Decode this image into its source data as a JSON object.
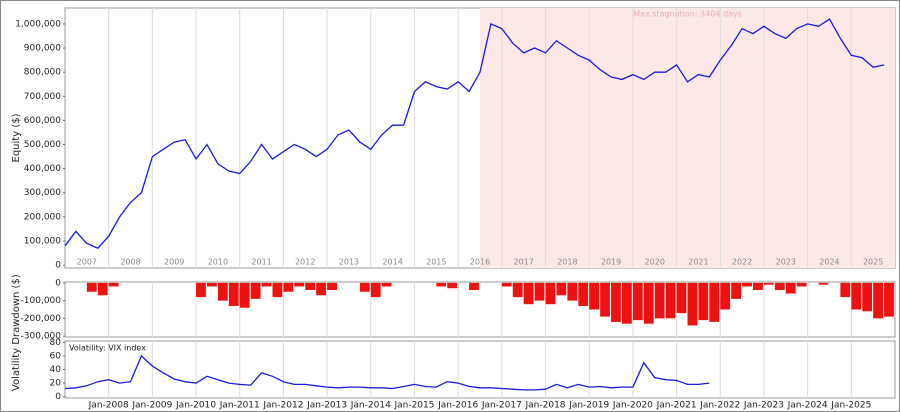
{
  "chart_data": [
    {
      "type": "line",
      "ylabel": "Equity ($)",
      "color": "#1a1adc",
      "xlim": [
        "2007-01",
        "2026-01"
      ],
      "ylim": [
        -12000,
        1066000
      ],
      "yticks": [
        0,
        {
          "value": 100000,
          "label": "100,000"
        },
        {
          "value": 200000,
          "label": "200,000"
        },
        {
          "value": 300000,
          "label": "300,000"
        },
        {
          "value": 400000,
          "label": "400,000"
        },
        {
          "value": 500000,
          "label": "500,000"
        },
        {
          "value": 600000,
          "label": "600,000"
        },
        {
          "value": 700000,
          "label": "700,000"
        },
        {
          "value": 800000,
          "label": "800,000"
        },
        {
          "value": 900000,
          "label": "900,000"
        },
        {
          "value": 1000000,
          "label": "1,000,000"
        }
      ],
      "year_labels": [
        {
          "value": "2007-07",
          "label": "2007"
        },
        {
          "value": "2008-07",
          "label": "2008"
        },
        {
          "value": "2009-07",
          "label": "2009"
        },
        {
          "value": "2010-07",
          "label": "2010"
        },
        {
          "value": "2011-07",
          "label": "2011"
        },
        {
          "value": "2012-07",
          "label": "2012"
        },
        {
          "value": "2013-07",
          "label": "2013"
        },
        {
          "value": "2014-07",
          "label": "2014"
        },
        {
          "value": "2015-07",
          "label": "2015"
        },
        {
          "value": "2016-07",
          "label": "2016"
        },
        {
          "value": "2017-07",
          "label": "2017"
        },
        {
          "value": "2018-07",
          "label": "2018"
        },
        {
          "value": "2019-07",
          "label": "2019"
        },
        {
          "value": "2020-07",
          "label": "2020"
        },
        {
          "value": "2021-07",
          "label": "2021"
        },
        {
          "value": "2022-07",
          "label": "2022"
        },
        {
          "value": "2023-07",
          "label": "2023"
        },
        {
          "value": "2024-07",
          "label": "2024"
        },
        {
          "value": "2025-07",
          "label": "2025"
        }
      ],
      "stagnation": {
        "label": "Max stagnation: 3404 days",
        "start": "2016-07",
        "end": "2026-01",
        "color": "#fde8e8"
      },
      "x": [
        "2007-01",
        "2007-04",
        "2007-07",
        "2007-10",
        "2008-01",
        "2008-04",
        "2008-07",
        "2008-10",
        "2009-01",
        "2009-04",
        "2009-07",
        "2009-10",
        "2010-01",
        "2010-04",
        "2010-07",
        "2010-10",
        "2011-01",
        "2011-04",
        "2011-07",
        "2011-10",
        "2012-01",
        "2012-04",
        "2012-07",
        "2012-10",
        "2013-01",
        "2013-04",
        "2013-07",
        "2013-10",
        "2014-01",
        "2014-04",
        "2014-07",
        "2014-10",
        "2015-01",
        "2015-04",
        "2015-07",
        "2015-10",
        "2016-01",
        "2016-04",
        "2016-07",
        "2016-10",
        "2017-01",
        "2017-04",
        "2017-07",
        "2017-10",
        "2018-01",
        "2018-04",
        "2018-07",
        "2018-10",
        "2019-01",
        "2019-04",
        "2019-07",
        "2019-10",
        "2020-01",
        "2020-04",
        "2020-07",
        "2020-10",
        "2021-01",
        "2021-04",
        "2021-07",
        "2021-10",
        "2022-01",
        "2022-04",
        "2022-07",
        "2022-10",
        "2023-01",
        "2023-04",
        "2023-07",
        "2023-10",
        "2024-01",
        "2024-04",
        "2024-07",
        "2024-10",
        "2025-01",
        "2025-04",
        "2025-07",
        "2025-10"
      ],
      "values": [
        80000,
        140000,
        90000,
        70000,
        120000,
        200000,
        260000,
        300000,
        450000,
        480000,
        510000,
        520000,
        440000,
        500000,
        420000,
        390000,
        380000,
        430000,
        500000,
        440000,
        470000,
        500000,
        480000,
        450000,
        480000,
        540000,
        560000,
        510000,
        480000,
        540000,
        580000,
        580000,
        720000,
        760000,
        740000,
        730000,
        760000,
        720000,
        800000,
        1000000,
        980000,
        920000,
        880000,
        900000,
        880000,
        930000,
        900000,
        870000,
        850000,
        810000,
        780000,
        770000,
        790000,
        770000,
        800000,
        800000,
        830000,
        760000,
        790000,
        780000,
        850000,
        910000,
        980000,
        960000,
        990000,
        960000,
        940000,
        980000,
        1000000,
        990000,
        1020000,
        940000,
        870000,
        860000,
        820000,
        830000
      ]
    },
    {
      "type": "bar",
      "ylabel": "Drawdown ($)",
      "color": "#ee1111",
      "xlim": [
        "2007-01",
        "2026-01"
      ],
      "ylim": [
        -305000,
        5000
      ],
      "yticks": [
        0,
        {
          "value": -100000,
          "label": "-100,000"
        },
        {
          "value": -200000,
          "label": "-200,000"
        },
        {
          "value": -300000,
          "label": "-300,000"
        }
      ],
      "x": [
        "2007-01",
        "2007-04",
        "2007-07",
        "2007-10",
        "2008-01",
        "2008-04",
        "2008-07",
        "2008-10",
        "2009-01",
        "2009-04",
        "2009-07",
        "2009-10",
        "2010-01",
        "2010-04",
        "2010-07",
        "2010-10",
        "2011-01",
        "2011-04",
        "2011-07",
        "2011-10",
        "2012-01",
        "2012-04",
        "2012-07",
        "2012-10",
        "2013-01",
        "2013-04",
        "2013-07",
        "2013-10",
        "2014-01",
        "2014-04",
        "2014-07",
        "2014-10",
        "2015-01",
        "2015-04",
        "2015-07",
        "2015-10",
        "2016-01",
        "2016-04",
        "2016-07",
        "2016-10",
        "2017-01",
        "2017-04",
        "2017-07",
        "2017-10",
        "2018-01",
        "2018-04",
        "2018-07",
        "2018-10",
        "2019-01",
        "2019-04",
        "2019-07",
        "2019-10",
        "2020-01",
        "2020-04",
        "2020-07",
        "2020-10",
        "2021-01",
        "2021-04",
        "2021-07",
        "2021-10",
        "2022-01",
        "2022-04",
        "2022-07",
        "2022-10",
        "2023-01",
        "2023-04",
        "2023-07",
        "2023-10",
        "2024-01",
        "2024-04",
        "2024-07",
        "2024-10",
        "2025-01",
        "2025-04",
        "2025-07",
        "2025-10"
      ],
      "values": [
        0,
        0,
        -50000,
        -70000,
        -20000,
        0,
        0,
        0,
        0,
        0,
        0,
        0,
        -80000,
        -20000,
        -100000,
        -130000,
        -140000,
        -90000,
        -20000,
        -80000,
        -50000,
        -20000,
        -40000,
        -70000,
        -40000,
        0,
        0,
        -50000,
        -80000,
        -20000,
        0,
        0,
        0,
        0,
        -20000,
        -30000,
        0,
        -40000,
        0,
        0,
        -20000,
        -80000,
        -120000,
        -100000,
        -120000,
        -70000,
        -100000,
        -130000,
        -150000,
        -190000,
        -220000,
        -230000,
        -210000,
        -230000,
        -200000,
        -200000,
        -170000,
        -240000,
        -210000,
        -220000,
        -150000,
        -90000,
        -20000,
        -40000,
        -10000,
        -40000,
        -60000,
        -20000,
        0,
        -10000,
        0,
        -80000,
        -150000,
        -160000,
        -200000,
        -190000
      ]
    },
    {
      "type": "line",
      "title": "Volatility: VIX index",
      "ylabel": "Volatility",
      "color": "#1a1adc",
      "xlim": [
        "2007-01",
        "2026-01"
      ],
      "ylim": [
        -2,
        82
      ],
      "yticks": [
        0,
        20,
        40,
        60,
        80
      ],
      "xticks": [
        {
          "value": "2008-01",
          "label": "Jan-2008"
        },
        {
          "value": "2009-01",
          "label": "Jan-2009"
        },
        {
          "value": "2010-01",
          "label": "Jan-2010"
        },
        {
          "value": "2011-01",
          "label": "Jan-2011"
        },
        {
          "value": "2012-01",
          "label": "Jan-2012"
        },
        {
          "value": "2013-01",
          "label": "Jan-2013"
        },
        {
          "value": "2014-01",
          "label": "Jan-2014"
        },
        {
          "value": "2015-01",
          "label": "Jan-2015"
        },
        {
          "value": "2016-01",
          "label": "Jan-2016"
        },
        {
          "value": "2017-01",
          "label": "Jan-2017"
        },
        {
          "value": "2018-01",
          "label": "Jan-2018"
        },
        {
          "value": "2019-01",
          "label": "Jan-2019"
        },
        {
          "value": "2020-01",
          "label": "Jan-2020"
        },
        {
          "value": "2021-01",
          "label": "Jan-2021"
        },
        {
          "value": "2022-01",
          "label": "Jan-2022"
        },
        {
          "value": "2023-01",
          "label": "Jan-2023"
        },
        {
          "value": "2024-01",
          "label": "Jan-2024"
        },
        {
          "value": "2025-01",
          "label": "Jan-2025"
        }
      ],
      "x": [
        "2007-01",
        "2007-04",
        "2007-07",
        "2007-10",
        "2008-01",
        "2008-04",
        "2008-07",
        "2008-10",
        "2009-01",
        "2009-04",
        "2009-07",
        "2009-10",
        "2010-01",
        "2010-04",
        "2010-07",
        "2010-10",
        "2011-01",
        "2011-04",
        "2011-07",
        "2011-10",
        "2012-01",
        "2012-04",
        "2012-07",
        "2012-10",
        "2013-01",
        "2013-04",
        "2013-07",
        "2013-10",
        "2014-01",
        "2014-04",
        "2014-07",
        "2014-10",
        "2015-01",
        "2015-04",
        "2015-07",
        "2015-10",
        "2016-01",
        "2016-04",
        "2016-07",
        "2016-10",
        "2017-01",
        "2017-04",
        "2017-07",
        "2017-10",
        "2018-01",
        "2018-04",
        "2018-07",
        "2018-10",
        "2019-01",
        "2019-04",
        "2019-07",
        "2019-10",
        "2020-01",
        "2020-04",
        "2020-07",
        "2020-10",
        "2021-01",
        "2021-04",
        "2021-07",
        "2021-10"
      ],
      "values": [
        12,
        13,
        16,
        22,
        25,
        20,
        22,
        60,
        45,
        35,
        26,
        22,
        20,
        30,
        25,
        20,
        18,
        17,
        35,
        30,
        22,
        18,
        18,
        16,
        14,
        13,
        14,
        14,
        13,
        13,
        12,
        15,
        18,
        15,
        14,
        22,
        20,
        15,
        13,
        13,
        12,
        11,
        10,
        10,
        11,
        18,
        13,
        18,
        14,
        15,
        13,
        14,
        14,
        50,
        28,
        25,
        24,
        18,
        18,
        20
      ]
    }
  ]
}
